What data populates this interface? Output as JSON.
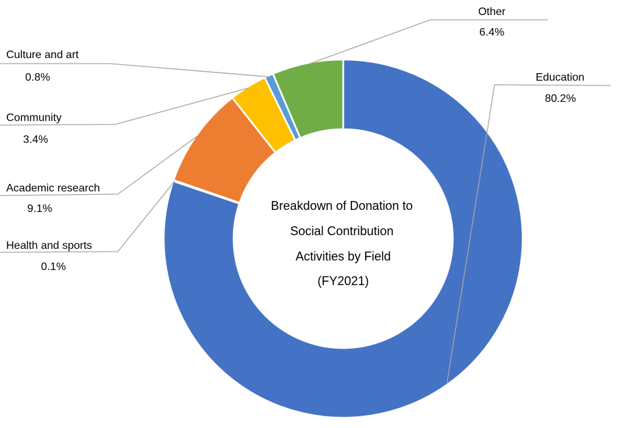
{
  "chart_data": {
    "type": "pie",
    "variant": "donut",
    "title_lines": [
      "Breakdown of Donation to",
      "Social Contribution",
      "Activities by Field",
      "(FY2021)"
    ],
    "slices": [
      {
        "label": "Education",
        "value": 80.2,
        "value_label": "80.2%",
        "color": "#4472c4"
      },
      {
        "label": "Health and sports",
        "value": 0.1,
        "value_label": "0.1%",
        "color": "#4472c4"
      },
      {
        "label": "Academic research",
        "value": 9.1,
        "value_label": "9.1%",
        "color": "#ed7d31"
      },
      {
        "label": "Community",
        "value": 3.4,
        "value_label": "3.4%",
        "color": "#ffc000"
      },
      {
        "label": "Culture and art",
        "value": 0.8,
        "value_label": "0.8%",
        "color": "#5b9bd5"
      },
      {
        "label": "Other",
        "value": 6.4,
        "value_label": "6.4%",
        "color": "#70ad47"
      }
    ],
    "legend": "none"
  }
}
